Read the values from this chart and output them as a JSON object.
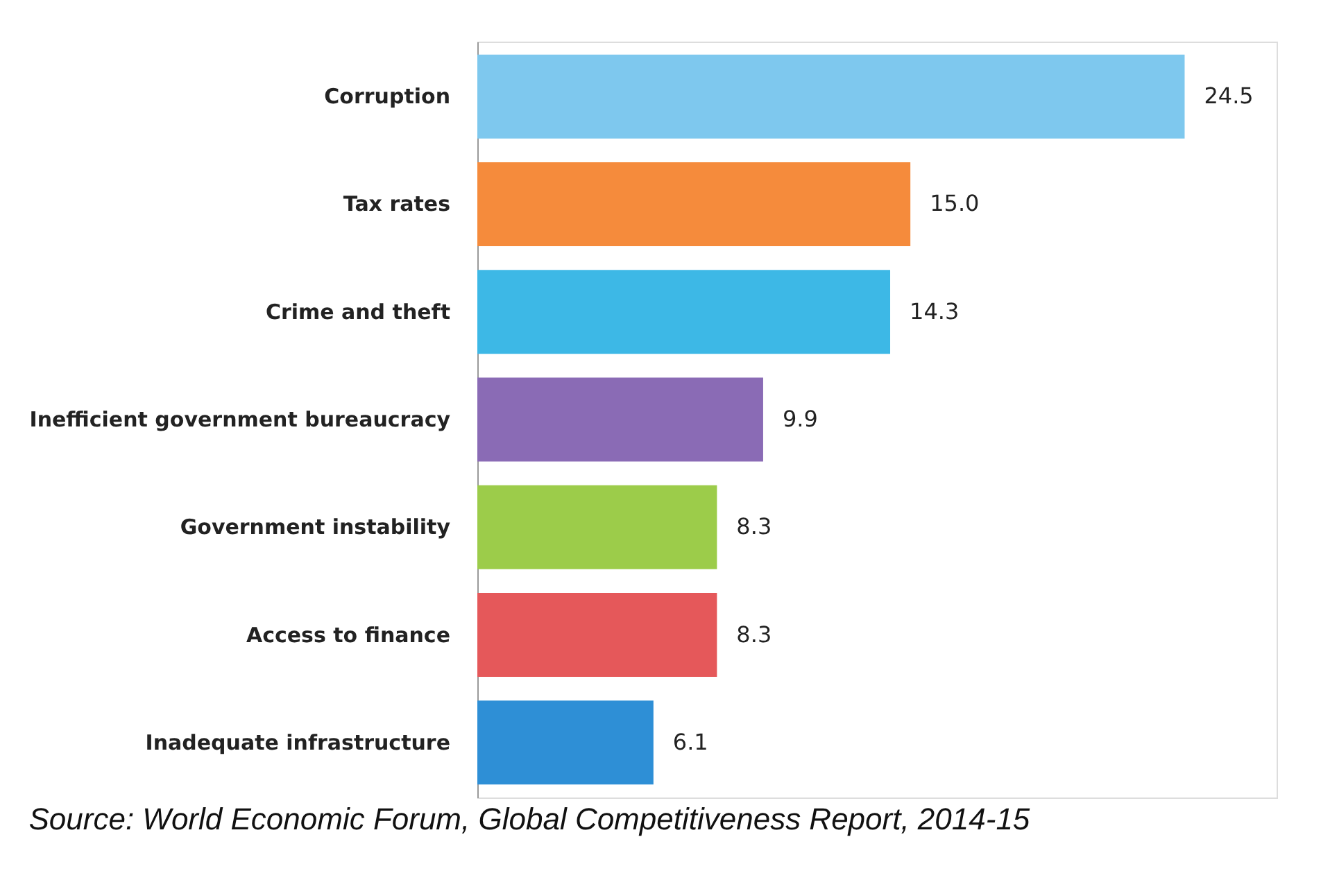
{
  "chart_data": {
    "type": "bar",
    "orientation": "horizontal",
    "categories": [
      "Corruption",
      "Tax rates",
      "Crime and theft",
      "Inefficient government bureaucracy",
      "Government instability",
      "Access to finance",
      "Inadequate infrastructure"
    ],
    "values": [
      24.5,
      15.0,
      14.3,
      9.9,
      8.3,
      8.3,
      6.1
    ],
    "colors": [
      "#7ec8ee",
      "#f58b3c",
      "#3db8e6",
      "#8a6bb5",
      "#9ccc4a",
      "#e5585a",
      "#2e8fd6"
    ],
    "data_labels": true,
    "value_labels": [
      "24.5",
      "15.0",
      "14.3",
      "9.9",
      "8.3",
      "8.3",
      "6.1"
    ],
    "annotations": [
      "Source: World Economic Forum, Global Competitiveness Report, 2014-15"
    ]
  }
}
